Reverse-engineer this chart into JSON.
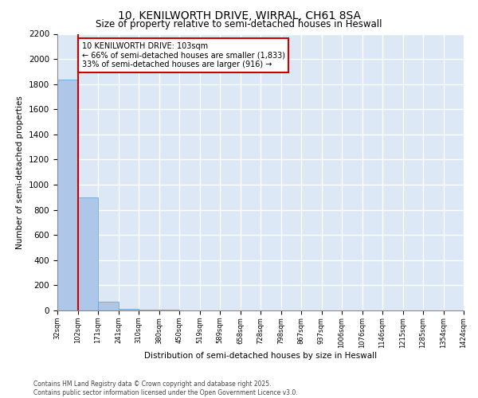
{
  "title": "10, KENILWORTH DRIVE, WIRRAL, CH61 8SA",
  "subtitle": "Size of property relative to semi-detached houses in Heswall",
  "xlabel": "Distribution of semi-detached houses by size in Heswall",
  "ylabel": "Number of semi-detached properties",
  "annotation_line1": "10 KENILWORTH DRIVE: 103sqm",
  "annotation_line2": "← 66% of semi-detached houses are smaller (1,833)",
  "annotation_line3": "33% of semi-detached houses are larger (916) →",
  "bin_labels": [
    "32sqm",
    "102sqm",
    "171sqm",
    "241sqm",
    "310sqm",
    "380sqm",
    "450sqm",
    "519sqm",
    "589sqm",
    "658sqm",
    "728sqm",
    "798sqm",
    "867sqm",
    "937sqm",
    "1006sqm",
    "1076sqm",
    "1146sqm",
    "1215sqm",
    "1285sqm",
    "1354sqm",
    "1424sqm"
  ],
  "bar_values": [
    1833,
    900,
    70,
    15,
    8,
    5,
    3,
    2,
    2,
    2,
    1,
    1,
    1,
    1,
    0,
    0,
    0,
    0,
    0,
    0
  ],
  "bar_color": "#aec6e8",
  "bar_edge_color": "#5a9fd4",
  "red_line_color": "#cc0000",
  "annotation_box_color": "#cc0000",
  "background_color": "#dce8f5",
  "grid_color": "#ffffff",
  "ylim": [
    0,
    2200
  ],
  "yticks": [
    0,
    200,
    400,
    600,
    800,
    1000,
    1200,
    1400,
    1600,
    1800,
    2000,
    2200
  ],
  "footer_line1": "Contains HM Land Registry data © Crown copyright and database right 2025.",
  "footer_line2": "Contains public sector information licensed under the Open Government Licence v3.0."
}
